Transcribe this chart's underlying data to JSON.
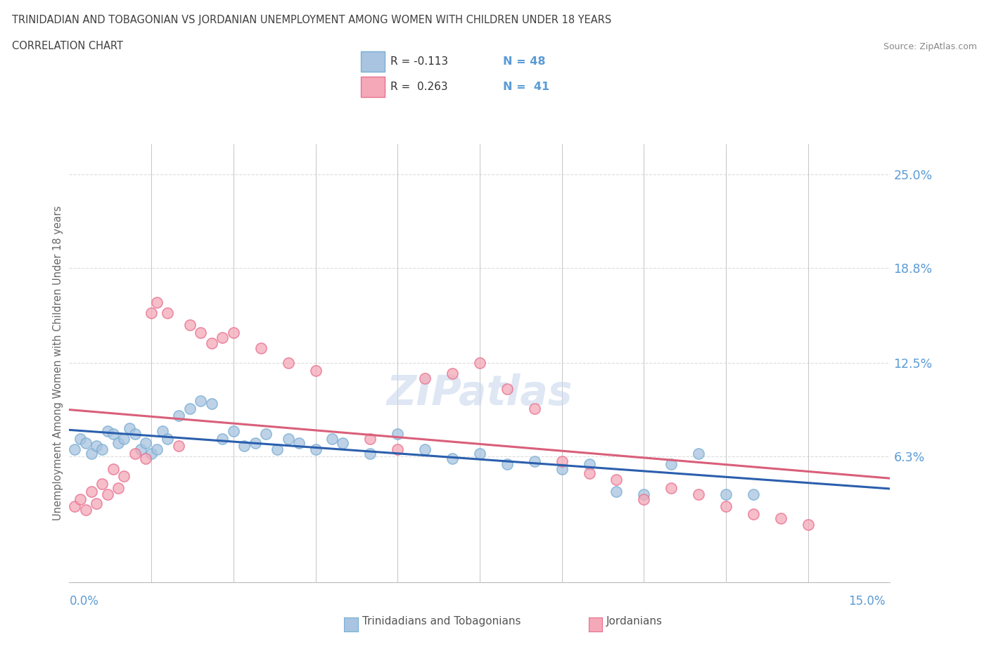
{
  "title_line1": "TRINIDADIAN AND TOBAGONIAN VS JORDANIAN UNEMPLOYMENT AMONG WOMEN WITH CHILDREN UNDER 18 YEARS",
  "title_line2": "CORRELATION CHART",
  "source": "Source: ZipAtlas.com",
  "ylabel_label": "Unemployment Among Women with Children Under 18 years",
  "ytick_vals": [
    0.063,
    0.125,
    0.188,
    0.25
  ],
  "ytick_labels": [
    "6.3%",
    "12.5%",
    "18.8%",
    "25.0%"
  ],
  "xmin": 0.0,
  "xmax": 0.15,
  "ymin": -0.02,
  "ymax": 0.27,
  "trinidadian_color": "#a8c4e0",
  "trinidadian_edge": "#7aafd4",
  "jordanian_color": "#f4a8b8",
  "jordanian_edge": "#e87090",
  "tri_line_color": "#2b5fad",
  "jor_line_color": "#d95f7a",
  "trinidadian_x": [
    0.001,
    0.002,
    0.003,
    0.004,
    0.005,
    0.006,
    0.007,
    0.008,
    0.009,
    0.01,
    0.011,
    0.012,
    0.013,
    0.014,
    0.015,
    0.016,
    0.017,
    0.018,
    0.02,
    0.022,
    0.024,
    0.026,
    0.028,
    0.03,
    0.032,
    0.034,
    0.036,
    0.038,
    0.04,
    0.042,
    0.045,
    0.048,
    0.05,
    0.055,
    0.06,
    0.065,
    0.07,
    0.075,
    0.08,
    0.085,
    0.09,
    0.095,
    0.1,
    0.105,
    0.11,
    0.115,
    0.12,
    0.125
  ],
  "trinidadian_y": [
    0.068,
    0.075,
    0.072,
    0.065,
    0.07,
    0.068,
    0.08,
    0.078,
    0.072,
    0.075,
    0.082,
    0.078,
    0.068,
    0.072,
    0.065,
    0.068,
    0.08,
    0.075,
    0.09,
    0.095,
    0.1,
    0.098,
    0.075,
    0.08,
    0.07,
    0.072,
    0.078,
    0.068,
    0.075,
    0.072,
    0.068,
    0.075,
    0.072,
    0.065,
    0.078,
    0.068,
    0.062,
    0.065,
    0.058,
    0.06,
    0.055,
    0.058,
    0.04,
    0.038,
    0.058,
    0.065,
    0.038,
    0.038
  ],
  "jordanian_x": [
    0.001,
    0.002,
    0.003,
    0.004,
    0.005,
    0.006,
    0.007,
    0.008,
    0.009,
    0.01,
    0.012,
    0.014,
    0.015,
    0.016,
    0.018,
    0.02,
    0.022,
    0.024,
    0.026,
    0.028,
    0.03,
    0.035,
    0.04,
    0.045,
    0.055,
    0.06,
    0.065,
    0.07,
    0.075,
    0.08,
    0.085,
    0.09,
    0.095,
    0.1,
    0.105,
    0.11,
    0.115,
    0.12,
    0.125,
    0.13,
    0.135
  ],
  "jordanian_y": [
    0.03,
    0.035,
    0.028,
    0.04,
    0.032,
    0.045,
    0.038,
    0.055,
    0.042,
    0.05,
    0.065,
    0.062,
    0.158,
    0.165,
    0.158,
    0.07,
    0.15,
    0.145,
    0.138,
    0.142,
    0.145,
    0.135,
    0.125,
    0.12,
    0.075,
    0.068,
    0.115,
    0.118,
    0.125,
    0.108,
    0.095,
    0.06,
    0.052,
    0.048,
    0.035,
    0.042,
    0.038,
    0.03,
    0.025,
    0.022,
    0.018
  ],
  "watermark_text": "ZIPatlas",
  "background_color": "#ffffff",
  "grid_color": "#dddddd",
  "tick_color": "#5b9bd5",
  "title_color": "#404040",
  "source_color": "#888888"
}
